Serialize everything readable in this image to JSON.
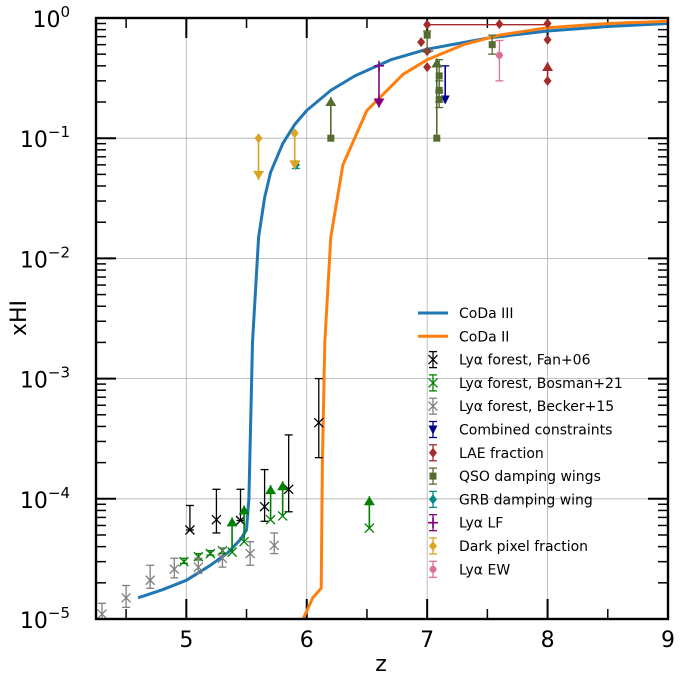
{
  "chart_data": {
    "type": "scatter",
    "title": "",
    "xlabel": "z",
    "ylabel": "xHI",
    "xlim": [
      4.25,
      9.0
    ],
    "ylim_log10": [
      -5,
      0
    ],
    "y_scale": "log",
    "grid": true,
    "legend_position": "lower-right",
    "x_ticks": [
      {
        "value": 5,
        "label": "5"
      },
      {
        "value": 6,
        "label": "6"
      },
      {
        "value": 7,
        "label": "7"
      },
      {
        "value": 8,
        "label": "8"
      },
      {
        "value": 9,
        "label": "9"
      }
    ],
    "y_ticks": [
      {
        "value": -5,
        "base": "10",
        "exp": "−5"
      },
      {
        "value": -4,
        "base": "10",
        "exp": "−4"
      },
      {
        "value": -3,
        "base": "10",
        "exp": "−3"
      },
      {
        "value": -2,
        "base": "10",
        "exp": "−2"
      },
      {
        "value": -1,
        "base": "10",
        "exp": "−1"
      },
      {
        "value": 0,
        "base": "10",
        "exp": "0"
      }
    ],
    "lines": [
      {
        "name": "CoDa III",
        "color": "#1f77b4",
        "x": [
          4.6,
          4.8,
          5.0,
          5.2,
          5.35,
          5.45,
          5.5,
          5.52,
          5.55,
          5.6,
          5.65,
          5.7,
          5.8,
          5.9,
          6.0,
          6.2,
          6.4,
          6.7,
          7.0,
          7.5,
          8.0,
          8.5,
          9.0
        ],
        "y": [
          1.5e-05,
          1.75e-05,
          2.1e-05,
          2.8e-05,
          3.6e-05,
          4.6e-05,
          5.5e-05,
          0.0001,
          0.002,
          0.015,
          0.032,
          0.052,
          0.09,
          0.13,
          0.17,
          0.25,
          0.33,
          0.45,
          0.55,
          0.68,
          0.78,
          0.85,
          0.9
        ]
      },
      {
        "name": "CoDa II",
        "color": "#ff7f0e",
        "x": [
          5.97,
          6.05,
          6.12,
          6.13,
          6.15,
          6.2,
          6.3,
          6.5,
          6.8,
          7.0,
          7.3,
          7.6,
          8.0,
          8.5,
          9.0
        ],
        "y": [
          1e-05,
          1.5e-05,
          1.8e-05,
          0.0002,
          0.002,
          0.015,
          0.06,
          0.17,
          0.34,
          0.45,
          0.6,
          0.72,
          0.83,
          0.9,
          0.94
        ]
      }
    ],
    "point_series": [
      {
        "name": "Lyα forest, Fan+06",
        "color": "#000000",
        "marker": "x",
        "points": [
          {
            "x": 5.03,
            "y": 5.5e-05,
            "lo": 5.5e-05,
            "hi": 8.8e-05
          },
          {
            "x": 5.25,
            "y": 6.7e-05,
            "lo": 5.2e-05,
            "hi": 0.00012
          },
          {
            "x": 5.45,
            "y": 6.6e-05,
            "lo": 6.6e-05,
            "hi": 0.00012
          },
          {
            "x": 5.65,
            "y": 8.6e-05,
            "lo": 6.5e-05,
            "hi": 0.000175
          },
          {
            "x": 5.85,
            "y": 0.00012,
            "lo": 7.8e-05,
            "hi": 0.00034
          },
          {
            "x": 6.1,
            "y": 0.00043,
            "lo": 0.00022,
            "hi": 0.001
          }
        ]
      },
      {
        "name": "Lyα forest, Bosman+21",
        "color": "#008000",
        "marker": "x",
        "points": [
          {
            "x": 4.98,
            "y": 3e-05,
            "lo": 2.9e-05,
            "hi": 3.2e-05
          },
          {
            "x": 5.1,
            "y": 3.3e-05,
            "lo": 3.1e-05,
            "hi": 3.5e-05
          },
          {
            "x": 5.2,
            "y": 3.5e-05,
            "lo": 3.4e-05,
            "hi": 3.7e-05
          },
          {
            "x": 5.3,
            "y": 3.7e-05,
            "lo": 3.5e-05,
            "hi": 3.9e-05
          },
          {
            "x": 5.38,
            "y": 3.6e-05,
            "up": 7e-05
          },
          {
            "x": 5.48,
            "y": 4.4e-05,
            "up": 8.8e-05
          },
          {
            "x": 5.7,
            "y": 6.7e-05,
            "up": 0.00013
          },
          {
            "x": 5.8,
            "y": 7.2e-05,
            "up": 0.00014
          },
          {
            "x": 6.52,
            "y": 5.7e-05,
            "up": 0.000105
          }
        ]
      },
      {
        "name": "Lyα forest, Becker+15",
        "color": "#808080",
        "marker": "x",
        "points": [
          {
            "x": 4.3,
            "y": 1.1e-05,
            "lo": 1e-05,
            "hi": 1.35e-05
          },
          {
            "x": 4.5,
            "y": 1.5e-05,
            "lo": 1.25e-05,
            "hi": 1.9e-05
          },
          {
            "x": 4.7,
            "y": 2.1e-05,
            "lo": 1.8e-05,
            "hi": 2.8e-05
          },
          {
            "x": 4.9,
            "y": 2.6e-05,
            "lo": 2.2e-05,
            "hi": 3.2e-05
          },
          {
            "x": 5.1,
            "y": 2.7e-05,
            "lo": 2.4e-05,
            "hi": 3.2e-05
          },
          {
            "x": 5.3,
            "y": 3.2e-05,
            "lo": 2.7e-05,
            "hi": 3.9e-05
          },
          {
            "x": 5.53,
            "y": 3.5e-05,
            "lo": 2.8e-05,
            "hi": 4.4e-05
          },
          {
            "x": 5.73,
            "y": 4.1e-05,
            "lo": 3.5e-05,
            "hi": 5.2e-05
          }
        ]
      },
      {
        "name": "Combined constraints",
        "color": "#00008b",
        "marker": "tri",
        "points": [
          {
            "x": 7.15,
            "y": 0.21,
            "up": 0.4,
            "cap": true
          }
        ]
      },
      {
        "name": "LAE fraction",
        "color": "#a52a2a",
        "marker": "diamond",
        "points": [
          {
            "x": 6.95,
            "y": 0.63
          },
          {
            "x": 7.0,
            "y": 0.39
          },
          {
            "x": 7.0,
            "y": 0.53,
            "xerr": [
              6.95,
              7.05
            ]
          },
          {
            "x": 7.0,
            "y": 0.88,
            "xerr": [
              7.0,
              8.0
            ]
          },
          {
            "x": 7.6,
            "y": 0.89
          },
          {
            "x": 8.0,
            "y": 0.9
          },
          {
            "x": 8.0,
            "y": 0.66
          },
          {
            "x": 8.0,
            "y": 0.3,
            "up": 0.43
          }
        ]
      },
      {
        "name": "QSO damping wings",
        "color": "#556b2f",
        "marker": "square",
        "points": [
          {
            "x": 6.2,
            "y": 0.1,
            "up": 0.22
          },
          {
            "x": 7.0,
            "y": 0.72,
            "lo": 0.52,
            "hi": 0.78
          },
          {
            "x": 7.08,
            "y": 0.1,
            "up": 0.46
          },
          {
            "x": 7.1,
            "y": 0.33,
            "lo": 0.25,
            "hi": 0.45
          },
          {
            "x": 7.1,
            "y": 0.25,
            "lo": 0.2,
            "hi": 0.3
          },
          {
            "x": 7.1,
            "y": 0.21,
            "lo": 0.18,
            "hi": 0.24
          },
          {
            "x": 7.54,
            "y": 0.6,
            "lo": 0.5,
            "hi": 0.72
          }
        ]
      },
      {
        "name": "GRB damping wing",
        "color": "#008b8b",
        "marker": "diamond",
        "points": [
          {
            "x": 5.91,
            "y": 0.06,
            "lo": 0.056,
            "hi": 0.064,
            "xerr": [
              5.88,
              5.94
            ]
          }
        ]
      },
      {
        "name": "Lyα LF",
        "color": "#800080",
        "marker": "plus",
        "points": [
          {
            "x": 6.6,
            "y": 0.18,
            "lo_arrow": true,
            "top": 0.4
          }
        ]
      },
      {
        "name": "Dark pixel fraction",
        "color": "#daa520",
        "marker": "diamond",
        "points": [
          {
            "x": 5.6,
            "y": 0.1,
            "down": 0.045
          },
          {
            "x": 5.9,
            "y": 0.11,
            "down": 0.055
          }
        ]
      },
      {
        "name": "Lyα EW",
        "color": "#db7093",
        "marker": "circle",
        "points": [
          {
            "x": 7.6,
            "y": 0.49,
            "lo": 0.3,
            "hi": 0.65
          }
        ]
      }
    ]
  }
}
